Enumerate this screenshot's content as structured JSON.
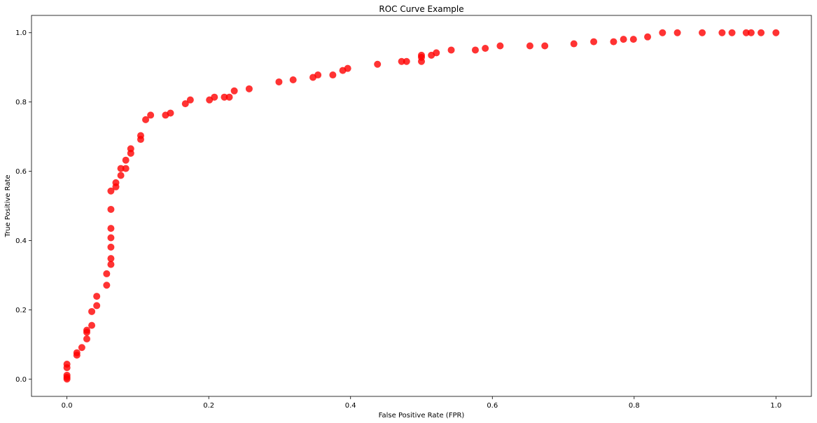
{
  "chart_data": {
    "type": "scatter",
    "title": "ROC Curve Example",
    "xlabel": "False Positive Rate (FPR)",
    "ylabel": "True Positive Rate",
    "xlim": [
      -0.05,
      1.05
    ],
    "ylim": [
      -0.05,
      1.05
    ],
    "x_ticks": [
      "0.0",
      "0.2",
      "0.4",
      "0.6",
      "0.8",
      "1.0"
    ],
    "y_ticks": [
      "0.0",
      "0.2",
      "0.4",
      "0.6",
      "0.8",
      "1.0"
    ],
    "grid": false,
    "marker_color": "#ff0000",
    "series": [
      {
        "points": [
          [
            0.0,
            0.0
          ],
          [
            0.0,
            0.005
          ],
          [
            0.0,
            0.011
          ],
          [
            0.0,
            0.033
          ],
          [
            0.0,
            0.043
          ],
          [
            0.014,
            0.069
          ],
          [
            0.014,
            0.076
          ],
          [
            0.021,
            0.091
          ],
          [
            0.028,
            0.116
          ],
          [
            0.028,
            0.135
          ],
          [
            0.028,
            0.141
          ],
          [
            0.035,
            0.155
          ],
          [
            0.035,
            0.195
          ],
          [
            0.042,
            0.212
          ],
          [
            0.042,
            0.239
          ],
          [
            0.056,
            0.271
          ],
          [
            0.056,
            0.304
          ],
          [
            0.062,
            0.331
          ],
          [
            0.062,
            0.348
          ],
          [
            0.062,
            0.381
          ],
          [
            0.062,
            0.408
          ],
          [
            0.062,
            0.435
          ],
          [
            0.062,
            0.49
          ],
          [
            0.062,
            0.543
          ],
          [
            0.069,
            0.555
          ],
          [
            0.069,
            0.567
          ],
          [
            0.076,
            0.588
          ],
          [
            0.076,
            0.608
          ],
          [
            0.083,
            0.608
          ],
          [
            0.083,
            0.632
          ],
          [
            0.09,
            0.652
          ],
          [
            0.09,
            0.665
          ],
          [
            0.104,
            0.692
          ],
          [
            0.104,
            0.703
          ],
          [
            0.111,
            0.749
          ],
          [
            0.118,
            0.762
          ],
          [
            0.139,
            0.762
          ],
          [
            0.146,
            0.768
          ],
          [
            0.167,
            0.795
          ],
          [
            0.174,
            0.806
          ],
          [
            0.201,
            0.806
          ],
          [
            0.208,
            0.814
          ],
          [
            0.222,
            0.814
          ],
          [
            0.229,
            0.814
          ],
          [
            0.236,
            0.832
          ],
          [
            0.257,
            0.838
          ],
          [
            0.299,
            0.858
          ],
          [
            0.319,
            0.864
          ],
          [
            0.347,
            0.871
          ],
          [
            0.354,
            0.878
          ],
          [
            0.375,
            0.878
          ],
          [
            0.389,
            0.891
          ],
          [
            0.396,
            0.897
          ],
          [
            0.438,
            0.909
          ],
          [
            0.472,
            0.917
          ],
          [
            0.479,
            0.917
          ],
          [
            0.5,
            0.917
          ],
          [
            0.5,
            0.929
          ],
          [
            0.5,
            0.935
          ],
          [
            0.514,
            0.935
          ],
          [
            0.521,
            0.942
          ],
          [
            0.542,
            0.95
          ],
          [
            0.576,
            0.95
          ],
          [
            0.59,
            0.955
          ],
          [
            0.611,
            0.962
          ],
          [
            0.653,
            0.962
          ],
          [
            0.674,
            0.962
          ],
          [
            0.715,
            0.968
          ],
          [
            0.743,
            0.974
          ],
          [
            0.771,
            0.974
          ],
          [
            0.785,
            0.981
          ],
          [
            0.799,
            0.981
          ],
          [
            0.819,
            0.988
          ],
          [
            0.84,
            1.0
          ],
          [
            0.861,
            1.0
          ],
          [
            0.896,
            1.0
          ],
          [
            0.924,
            1.0
          ],
          [
            0.938,
            1.0
          ],
          [
            0.958,
            1.0
          ],
          [
            0.965,
            1.0
          ],
          [
            0.979,
            1.0
          ],
          [
            1.0,
            1.0
          ]
        ]
      }
    ]
  }
}
